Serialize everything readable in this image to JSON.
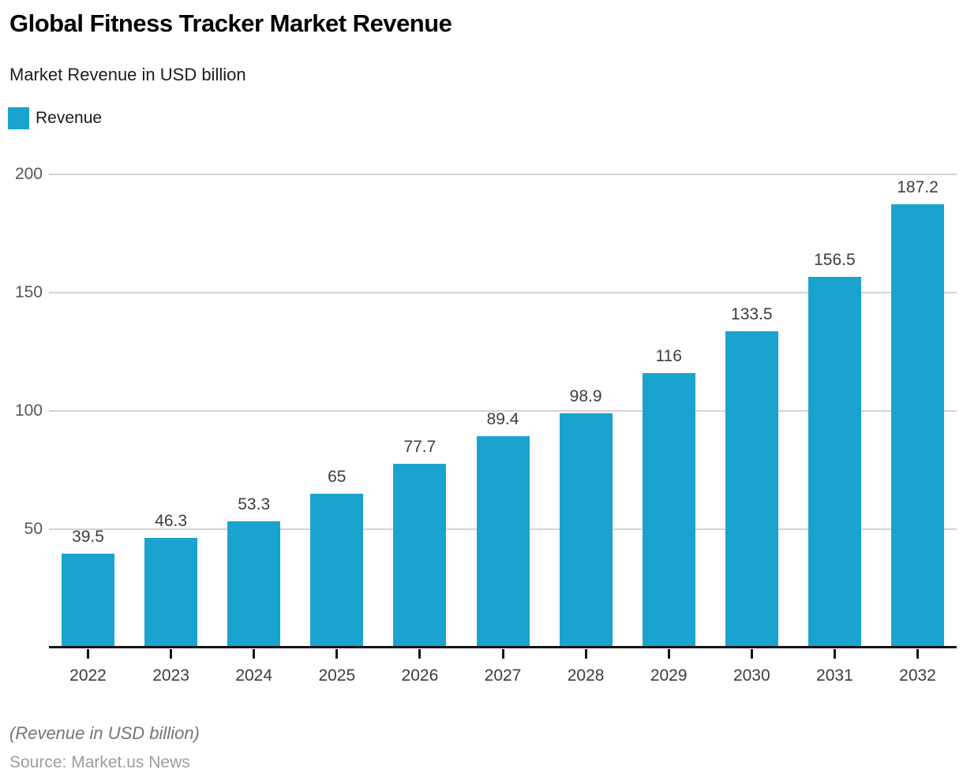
{
  "header": {
    "title": "Global Fitness Tracker Market Revenue",
    "subtitle": "Market Revenue in USD billion"
  },
  "legend": {
    "label": "Revenue",
    "swatch_color": "#1aa3cf"
  },
  "chart_data": {
    "type": "bar",
    "title": "Global Fitness Tracker Market Revenue",
    "subtitle": "Market Revenue in USD billion",
    "series_name": "Revenue",
    "categories": [
      "2022",
      "2023",
      "2024",
      "2025",
      "2026",
      "2027",
      "2028",
      "2029",
      "2030",
      "2031",
      "2032"
    ],
    "values": [
      39.5,
      46.3,
      53.3,
      65,
      77.7,
      89.4,
      98.9,
      116,
      133.5,
      156.5,
      187.2
    ],
    "value_labels": [
      "39.5",
      "46.3",
      "53.3",
      "65",
      "77.7",
      "89.4",
      "98.9",
      "116",
      "133.5",
      "156.5",
      "187.2"
    ],
    "xlabel": "",
    "ylabel": "",
    "ylim": [
      0,
      200
    ],
    "yticks": [
      50,
      100,
      150,
      200
    ],
    "grid": "horizontal",
    "legend_position": "top-left",
    "bar_color": "#1aa3cf",
    "gridline_color": "#d4d4d4",
    "axis_color": "#141414"
  },
  "footer": {
    "note": "(Revenue in USD billion)",
    "source": "Source: Market.us News"
  }
}
